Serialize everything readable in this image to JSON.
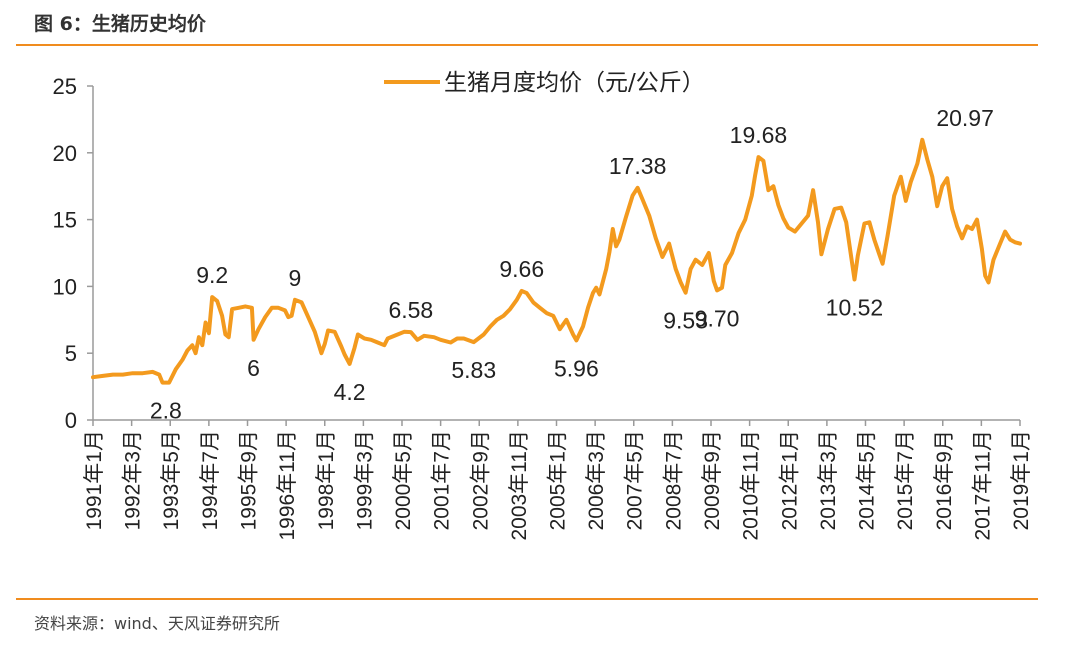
{
  "figure": {
    "title": "图 6：生猪历史均价",
    "source": "资料来源：wind、天风证券研究所",
    "accent_color": "#f08c1e"
  },
  "chart_data": {
    "type": "line",
    "title": "",
    "xlabel": "",
    "ylabel": "",
    "ylim": [
      0,
      25
    ],
    "yticks": [
      0,
      5,
      10,
      15,
      20,
      25
    ],
    "grid": false,
    "legend_position": "top-center",
    "series": [
      {
        "name": "生猪月度均价（元/公斤）",
        "color": "#f39a1e",
        "points": [
          [
            1991.0,
            3.2
          ],
          [
            1991.3,
            3.3
          ],
          [
            1991.6,
            3.4
          ],
          [
            1991.9,
            3.4
          ],
          [
            1992.2,
            3.5
          ],
          [
            1992.5,
            3.5
          ],
          [
            1992.8,
            3.6
          ],
          [
            1993.0,
            3.4
          ],
          [
            1993.1,
            2.8
          ],
          [
            1993.3,
            2.8
          ],
          [
            1993.5,
            3.8
          ],
          [
            1993.7,
            4.5
          ],
          [
            1993.85,
            5.2
          ],
          [
            1994.0,
            5.6
          ],
          [
            1994.1,
            5.0
          ],
          [
            1994.2,
            6.2
          ],
          [
            1994.3,
            5.6
          ],
          [
            1994.4,
            7.3
          ],
          [
            1994.5,
            6.5
          ],
          [
            1994.6,
            9.2
          ],
          [
            1994.75,
            8.9
          ],
          [
            1994.9,
            7.8
          ],
          [
            1995.0,
            6.4
          ],
          [
            1995.1,
            6.2
          ],
          [
            1995.2,
            8.3
          ],
          [
            1995.4,
            8.4
          ],
          [
            1995.6,
            8.5
          ],
          [
            1995.8,
            8.4
          ],
          [
            1995.85,
            6.0
          ],
          [
            1996.0,
            6.8
          ],
          [
            1996.2,
            7.7
          ],
          [
            1996.4,
            8.4
          ],
          [
            1996.6,
            8.4
          ],
          [
            1996.8,
            8.2
          ],
          [
            1996.9,
            7.7
          ],
          [
            1997.0,
            7.8
          ],
          [
            1997.1,
            9.0
          ],
          [
            1997.3,
            8.8
          ],
          [
            1997.5,
            7.7
          ],
          [
            1997.7,
            6.6
          ],
          [
            1997.9,
            5.0
          ],
          [
            1998.0,
            5.7
          ],
          [
            1998.1,
            6.7
          ],
          [
            1998.3,
            6.6
          ],
          [
            1998.5,
            5.5
          ],
          [
            1998.6,
            4.9
          ],
          [
            1998.75,
            4.2
          ],
          [
            1998.9,
            5.4
          ],
          [
            1999.0,
            6.4
          ],
          [
            1999.2,
            6.1
          ],
          [
            1999.4,
            6.0
          ],
          [
            1999.6,
            5.8
          ],
          [
            1999.8,
            5.6
          ],
          [
            1999.9,
            6.1
          ],
          [
            2000.2,
            6.4
          ],
          [
            2000.4,
            6.6
          ],
          [
            2000.6,
            6.58
          ],
          [
            2000.8,
            6.0
          ],
          [
            2001.0,
            6.3
          ],
          [
            2001.3,
            6.2
          ],
          [
            2001.5,
            6.0
          ],
          [
            2001.8,
            5.8
          ],
          [
            2002.0,
            6.1
          ],
          [
            2002.2,
            6.1
          ],
          [
            2002.5,
            5.83
          ],
          [
            2002.8,
            6.4
          ],
          [
            2003.0,
            7.0
          ],
          [
            2003.2,
            7.5
          ],
          [
            2003.4,
            7.8
          ],
          [
            2003.6,
            8.3
          ],
          [
            2003.8,
            9.0
          ],
          [
            2003.95,
            9.66
          ],
          [
            2004.1,
            9.5
          ],
          [
            2004.3,
            8.8
          ],
          [
            2004.5,
            8.4
          ],
          [
            2004.7,
            8.0
          ],
          [
            2004.9,
            7.8
          ],
          [
            2005.1,
            6.8
          ],
          [
            2005.3,
            7.5
          ],
          [
            2005.5,
            6.4
          ],
          [
            2005.6,
            5.96
          ],
          [
            2005.8,
            7.0
          ],
          [
            2005.95,
            8.4
          ],
          [
            2006.1,
            9.5
          ],
          [
            2006.2,
            9.9
          ],
          [
            2006.3,
            9.4
          ],
          [
            2006.5,
            11.3
          ],
          [
            2006.6,
            12.6
          ],
          [
            2006.7,
            14.3
          ],
          [
            2006.8,
            13.0
          ],
          [
            2006.9,
            13.5
          ],
          [
            2007.1,
            15.2
          ],
          [
            2007.3,
            16.8
          ],
          [
            2007.45,
            17.38
          ],
          [
            2007.6,
            16.5
          ],
          [
            2007.8,
            15.3
          ],
          [
            2008.0,
            13.6
          ],
          [
            2008.2,
            12.2
          ],
          [
            2008.4,
            13.2
          ],
          [
            2008.6,
            11.3
          ],
          [
            2008.75,
            10.3
          ],
          [
            2008.9,
            9.53
          ],
          [
            2009.05,
            11.3
          ],
          [
            2009.2,
            12.0
          ],
          [
            2009.4,
            11.6
          ],
          [
            2009.6,
            12.5
          ],
          [
            2009.75,
            10.4
          ],
          [
            2009.85,
            9.7
          ],
          [
            2010.0,
            9.9
          ],
          [
            2010.1,
            11.6
          ],
          [
            2010.3,
            12.5
          ],
          [
            2010.5,
            14.0
          ],
          [
            2010.7,
            15.0
          ],
          [
            2010.9,
            16.8
          ],
          [
            2011.0,
            18.3
          ],
          [
            2011.1,
            19.68
          ],
          [
            2011.25,
            19.4
          ],
          [
            2011.4,
            17.2
          ],
          [
            2011.55,
            17.5
          ],
          [
            2011.7,
            16.1
          ],
          [
            2011.85,
            15.1
          ],
          [
            2012.0,
            14.4
          ],
          [
            2012.2,
            14.1
          ],
          [
            2012.4,
            14.7
          ],
          [
            2012.6,
            15.3
          ],
          [
            2012.75,
            17.2
          ],
          [
            2012.9,
            14.8
          ],
          [
            2013.0,
            12.4
          ],
          [
            2013.2,
            14.3
          ],
          [
            2013.4,
            15.8
          ],
          [
            2013.6,
            15.9
          ],
          [
            2013.75,
            14.8
          ],
          [
            2013.9,
            12.2
          ],
          [
            2014.0,
            10.52
          ],
          [
            2014.1,
            12.3
          ],
          [
            2014.3,
            14.7
          ],
          [
            2014.45,
            14.8
          ],
          [
            2014.6,
            13.5
          ],
          [
            2014.75,
            12.4
          ],
          [
            2014.85,
            11.7
          ],
          [
            2015.0,
            13.8
          ],
          [
            2015.2,
            16.8
          ],
          [
            2015.4,
            18.2
          ],
          [
            2015.55,
            16.4
          ],
          [
            2015.7,
            17.8
          ],
          [
            2015.9,
            19.2
          ],
          [
            2016.05,
            20.97
          ],
          [
            2016.2,
            19.5
          ],
          [
            2016.35,
            18.2
          ],
          [
            2016.5,
            16.0
          ],
          [
            2016.65,
            17.5
          ],
          [
            2016.8,
            18.1
          ],
          [
            2016.95,
            15.8
          ],
          [
            2017.1,
            14.5
          ],
          [
            2017.25,
            13.6
          ],
          [
            2017.4,
            14.5
          ],
          [
            2017.55,
            14.3
          ],
          [
            2017.7,
            15.0
          ],
          [
            2017.85,
            12.8
          ],
          [
            2017.95,
            10.8
          ],
          [
            2018.05,
            10.3
          ],
          [
            2018.2,
            12.0
          ],
          [
            2018.4,
            13.2
          ],
          [
            2018.55,
            14.1
          ],
          [
            2018.7,
            13.5
          ],
          [
            2018.85,
            13.3
          ],
          [
            2019.0,
            13.2
          ]
        ]
      }
    ],
    "x_ticks": [
      {
        "label": "1991年1月",
        "x": 1991.0
      },
      {
        "label": "1992年3月",
        "x": 1992.167
      },
      {
        "label": "1993年5月",
        "x": 1993.333
      },
      {
        "label": "1994年7月",
        "x": 1994.5
      },
      {
        "label": "1995年9月",
        "x": 1995.667
      },
      {
        "label": "1996年11月",
        "x": 1996.833
      },
      {
        "label": "1998年1月",
        "x": 1998.0
      },
      {
        "label": "1999年3月",
        "x": 1999.167
      },
      {
        "label": "2000年5月",
        "x": 2000.333
      },
      {
        "label": "2001年7月",
        "x": 2001.5
      },
      {
        "label": "2002年9月",
        "x": 2002.667
      },
      {
        "label": "2003年11月",
        "x": 2003.833
      },
      {
        "label": "2005年1月",
        "x": 2005.0
      },
      {
        "label": "2006年3月",
        "x": 2006.167
      },
      {
        "label": "2007年5月",
        "x": 2007.333
      },
      {
        "label": "2008年7月",
        "x": 2008.5
      },
      {
        "label": "2009年9月",
        "x": 2009.667
      },
      {
        "label": "2010年11月",
        "x": 2010.833
      },
      {
        "label": "2012年1月",
        "x": 2012.0
      },
      {
        "label": "2013年3月",
        "x": 2013.167
      },
      {
        "label": "2014年5月",
        "x": 2014.333
      },
      {
        "label": "2015年7月",
        "x": 2015.5
      },
      {
        "label": "2016年9月",
        "x": 2016.667
      },
      {
        "label": "2017年11月",
        "x": 2017.833
      },
      {
        "label": "2019年1月",
        "x": 2019.0
      }
    ],
    "annotations": [
      {
        "text": "2.8",
        "x": 1993.2,
        "y": 2.8,
        "pos": "below"
      },
      {
        "text": "9.2",
        "x": 1994.6,
        "y": 9.2,
        "pos": "above"
      },
      {
        "text": "6",
        "x": 1995.85,
        "y": 6.0,
        "pos": "below"
      },
      {
        "text": "9",
        "x": 1997.1,
        "y": 9.0,
        "pos": "above"
      },
      {
        "text": "4.2",
        "x": 1998.75,
        "y": 4.2,
        "pos": "below"
      },
      {
        "text": "6.58",
        "x": 2000.6,
        "y": 6.58,
        "pos": "above"
      },
      {
        "text": "5.83",
        "x": 2002.5,
        "y": 5.83,
        "pos": "below"
      },
      {
        "text": "9.66",
        "x": 2003.95,
        "y": 9.66,
        "pos": "above"
      },
      {
        "text": "5.96",
        "x": 2005.6,
        "y": 5.96,
        "pos": "below"
      },
      {
        "text": "17.38",
        "x": 2007.45,
        "y": 17.38,
        "pos": "above"
      },
      {
        "text": "9.53",
        "x": 2008.9,
        "y": 9.53,
        "pos": "below"
      },
      {
        "text": "9.70",
        "x": 2009.85,
        "y": 9.7,
        "pos": "below"
      },
      {
        "text": "19.68",
        "x": 2011.1,
        "y": 19.68,
        "pos": "above"
      },
      {
        "text": "10.52",
        "x": 2014.0,
        "y": 10.52,
        "pos": "below"
      },
      {
        "text": "20.97",
        "x": 2016.05,
        "y": 20.97,
        "pos": "above-right"
      }
    ]
  }
}
